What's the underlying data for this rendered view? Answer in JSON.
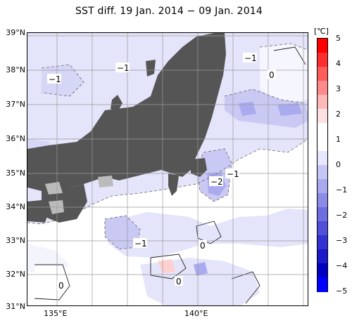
{
  "title": "SST diff. 19 Jan. 2014 − 09 Jan. 2014",
  "latitude_labels": [
    "39°N",
    "38°N",
    "37°N",
    "36°N",
    "35°N",
    "34°N",
    "33°N",
    "32°N",
    "31°N"
  ],
  "longitude_labels": [
    "135°E",
    "140°E"
  ],
  "colorbar": {
    "unit": "[℃]",
    "ticks": [
      "5",
      "4",
      "3",
      "2",
      "1",
      "0",
      "−1",
      "−2",
      "−3",
      "−4",
      "−5"
    ],
    "colors": [
      "#ff0000",
      "#ff2e2e",
      "#ff5c5c",
      "#ff8a8a",
      "#ffb8b8",
      "#ffe0e0",
      "#ffffff",
      "#ffffff",
      "#e6e6ff",
      "#c6c6f6",
      "#a9a9ef",
      "#8c8ce8",
      "#6e6ee0",
      "#5050d8",
      "#3232d0",
      "#1a1ac8",
      "#0000c0",
      "#0000ff"
    ]
  },
  "contour_labels": [
    {
      "id": "c1",
      "text": "−1"
    },
    {
      "id": "c2",
      "text": "−1"
    },
    {
      "id": "c3",
      "text": "−1"
    },
    {
      "id": "c4",
      "text": "0"
    },
    {
      "id": "c5",
      "text": "−2"
    },
    {
      "id": "c6",
      "text": "−1"
    },
    {
      "id": "c7",
      "text": "−1"
    },
    {
      "id": "c8",
      "text": "0"
    },
    {
      "id": "c9",
      "text": "0"
    },
    {
      "id": "c10",
      "text": "0"
    }
  ],
  "colors": {
    "land": "#555555",
    "lake_gray": "#bbbbbb",
    "ocean_light_blue": "#e4e4fb",
    "ocean_mid_blue": "#c9c9f4",
    "ocean_blue": "#aaaaef",
    "ocean_pink": "#ffd0d0"
  }
}
